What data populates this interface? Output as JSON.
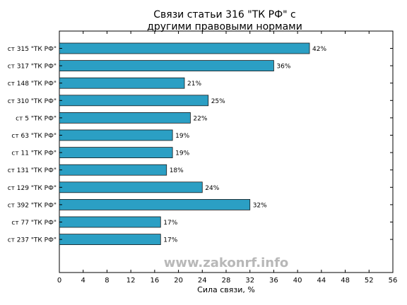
{
  "chart_data": {
    "type": "bar",
    "orientation": "horizontal",
    "title": "Связи статьи 316 \"ТК РФ\" с\nдругими правовыми нормами",
    "xlabel": "Сила связи, %",
    "ylabel": "",
    "xlim": [
      0,
      56
    ],
    "xticks": [
      0,
      4,
      8,
      12,
      16,
      20,
      24,
      28,
      32,
      36,
      40,
      44,
      48,
      52,
      56
    ],
    "grid": false,
    "bar_color": "#2b9fc4",
    "categories": [
      "ст 315 \"ТК РФ\"",
      "ст 317 \"ТК РФ\"",
      "ст 148 \"ТК РФ\"",
      "ст 310 \"ТК РФ\"",
      "ст 5 \"ТК РФ\"",
      "ст 63 \"ТК РФ\"",
      "ст 11 \"ТК РФ\"",
      "ст 131 \"ТК РФ\"",
      "ст 129 \"ТК РФ\"",
      "ст 392 \"ТК РФ\"",
      "ст 77 \"ТК РФ\"",
      "ст 237 \"ТК РФ\""
    ],
    "values": [
      42,
      36,
      21,
      25,
      22,
      19,
      19,
      18,
      24,
      32,
      17,
      17
    ],
    "value_labels": [
      "42%",
      "36%",
      "21%",
      "25%",
      "22%",
      "19%",
      "19%",
      "18%",
      "24%",
      "32%",
      "17%",
      "17%"
    ]
  },
  "watermark": "www.zakonrf.info"
}
